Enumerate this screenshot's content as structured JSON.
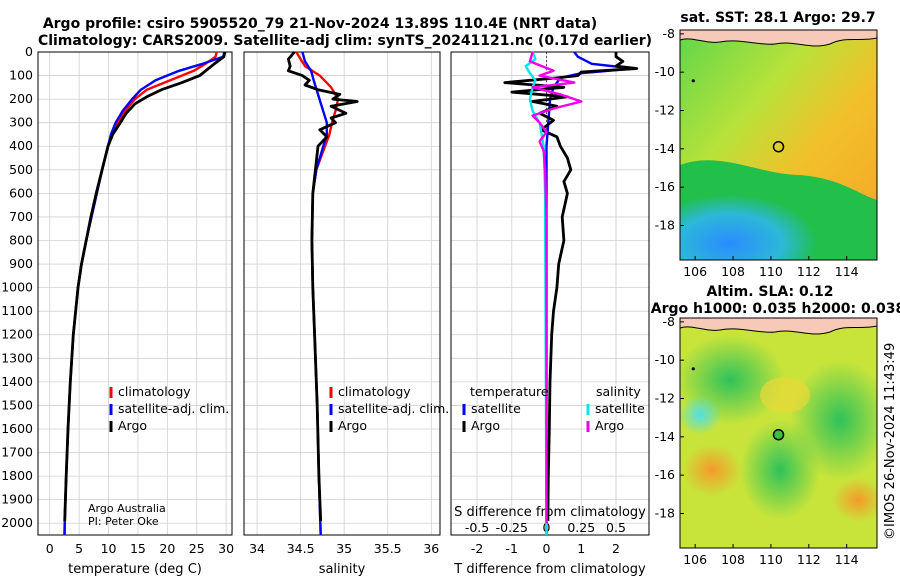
{
  "header": {
    "line1": "Argo profile: csiro 5905520_79 21-Nov-2024 13.89S 110.4E (NRT data)",
    "line2": "Climatology: CARS2009. Satellite-adj clim: synTS_20241121.nc (0.17d earlier)"
  },
  "credits": {
    "org": "Argo Australia",
    "pi": "PI: Peter Oke"
  },
  "timestamp": "©IMOS 26-Nov-2024 11:43:49",
  "colors": {
    "climatology": "#ff0000",
    "satellite": "#0000ff",
    "argo": "#000000",
    "sat_salinity": "#00e5ee",
    "argo_salinity": "#ee00ee"
  },
  "chart_data": [
    {
      "type": "line",
      "name": "temperature_profile",
      "xlabel": "temperature (deg C)",
      "xlim": [
        -2,
        31
      ],
      "xticks": [
        "0",
        "5",
        "10",
        "15",
        "20",
        "25",
        "30"
      ],
      "ylim": [
        0,
        2050
      ],
      "yticks": [
        "0",
        "100",
        "200",
        "300",
        "400",
        "500",
        "600",
        "700",
        "800",
        "900",
        "1000",
        "1100",
        "1200",
        "1300",
        "1400",
        "1500",
        "1600",
        "1700",
        "1800",
        "1900",
        "2000"
      ],
      "legend": [
        "climatology",
        "satellite-adj. clim.",
        "Argo"
      ],
      "series": [
        {
          "name": "climatology",
          "points": [
            [
              0,
              28.4
            ],
            [
              20,
              28.2
            ],
            [
              50,
              26.5
            ],
            [
              80,
              24.5
            ],
            [
              120,
              20.5
            ],
            [
              160,
              16.5
            ],
            [
              200,
              14.5
            ],
            [
              250,
              12.8
            ],
            [
              300,
              11.5
            ],
            [
              350,
              10.5
            ],
            [
              400,
              9.9
            ],
            [
              500,
              8.9
            ],
            [
              600,
              8.0
            ],
            [
              700,
              7.1
            ],
            [
              800,
              6.2
            ],
            [
              900,
              5.4
            ],
            [
              1000,
              4.8
            ],
            [
              1200,
              4.0
            ],
            [
              1400,
              3.5
            ],
            [
              1600,
              3.1
            ],
            [
              1800,
              2.8
            ],
            [
              2000,
              2.55
            ],
            [
              2050,
              2.5
            ]
          ]
        },
        {
          "name": "satellite",
          "points": [
            [
              0,
              29.7
            ],
            [
              20,
              29.5
            ],
            [
              50,
              26.0
            ],
            [
              80,
              22.0
            ],
            [
              120,
              18.0
            ],
            [
              160,
              15.5
            ],
            [
              200,
              14.0
            ],
            [
              250,
              12.4
            ],
            [
              300,
              11.2
            ],
            [
              350,
              10.4
            ],
            [
              400,
              9.9
            ],
            [
              500,
              8.9
            ],
            [
              600,
              8.0
            ],
            [
              700,
              7.1
            ],
            [
              800,
              6.2
            ],
            [
              900,
              5.4
            ],
            [
              1000,
              4.8
            ],
            [
              1200,
              4.0
            ],
            [
              1400,
              3.5
            ],
            [
              1600,
              3.1
            ],
            [
              1800,
              2.8
            ],
            [
              2000,
              2.55
            ],
            [
              2050,
              2.5
            ]
          ]
        },
        {
          "name": "Argo",
          "points": [
            [
              0,
              29.8
            ],
            [
              20,
              29.6
            ],
            [
              50,
              28.0
            ],
            [
              70,
              27.0
            ],
            [
              100,
              25.5
            ],
            [
              130,
              22.5
            ],
            [
              160,
              19.0
            ],
            [
              190,
              16.5
            ],
            [
              220,
              14.5
            ],
            [
              260,
              13.0
            ],
            [
              300,
              12.0
            ],
            [
              350,
              10.7
            ],
            [
              400,
              9.9
            ],
            [
              500,
              8.9
            ],
            [
              600,
              7.9
            ],
            [
              700,
              7.0
            ],
            [
              800,
              6.2
            ],
            [
              900,
              5.4
            ],
            [
              1000,
              4.8
            ],
            [
              1200,
              4.0
            ],
            [
              1400,
              3.5
            ],
            [
              1600,
              3.1
            ],
            [
              1800,
              2.8
            ],
            [
              1990,
              2.55
            ]
          ]
        }
      ]
    },
    {
      "type": "line",
      "name": "salinity_profile",
      "xlabel": "salinity",
      "xlim": [
        33.85,
        36.1
      ],
      "xticks": [
        "34",
        "34.5",
        "35",
        "35.5",
        "36"
      ],
      "ylim": [
        0,
        2050
      ],
      "legend": [
        "climatology",
        "satellite-adj. clim.",
        "Argo"
      ],
      "series": [
        {
          "name": "climatology",
          "points": [
            [
              0,
              34.45
            ],
            [
              30,
              34.5
            ],
            [
              60,
              34.55
            ],
            [
              100,
              34.72
            ],
            [
              150,
              34.85
            ],
            [
              200,
              34.93
            ],
            [
              250,
              34.9
            ],
            [
              300,
              34.86
            ],
            [
              350,
              34.83
            ],
            [
              400,
              34.78
            ],
            [
              500,
              34.68
            ],
            [
              600,
              34.64
            ],
            [
              800,
              34.63
            ],
            [
              1000,
              34.64
            ],
            [
              1200,
              34.66
            ],
            [
              1500,
              34.69
            ],
            [
              1800,
              34.71
            ],
            [
              2050,
              34.73
            ]
          ]
        },
        {
          "name": "satellite",
          "points": [
            [
              0,
              34.52
            ],
            [
              40,
              34.55
            ],
            [
              80,
              34.62
            ],
            [
              120,
              34.65
            ],
            [
              180,
              34.7
            ],
            [
              240,
              34.75
            ],
            [
              300,
              34.8
            ],
            [
              350,
              34.8
            ],
            [
              400,
              34.76
            ],
            [
              500,
              34.68
            ],
            [
              600,
              34.64
            ],
            [
              800,
              34.63
            ],
            [
              1000,
              34.64
            ],
            [
              1200,
              34.66
            ],
            [
              1500,
              34.69
            ],
            [
              1800,
              34.71
            ],
            [
              2050,
              34.73
            ]
          ]
        },
        {
          "name": "Argo",
          "points": [
            [
              0,
              34.43
            ],
            [
              30,
              34.36
            ],
            [
              60,
              34.38
            ],
            [
              80,
              34.36
            ],
            [
              100,
              34.52
            ],
            [
              120,
              34.6
            ],
            [
              140,
              34.55
            ],
            [
              160,
              34.7
            ],
            [
              180,
              34.95
            ],
            [
              200,
              34.87
            ],
            [
              210,
              35.15
            ],
            [
              230,
              34.85
            ],
            [
              260,
              35.02
            ],
            [
              280,
              34.85
            ],
            [
              300,
              34.9
            ],
            [
              330,
              34.72
            ],
            [
              360,
              34.8
            ],
            [
              400,
              34.7
            ],
            [
              500,
              34.67
            ],
            [
              600,
              34.64
            ],
            [
              800,
              34.63
            ],
            [
              1000,
              34.64
            ],
            [
              1200,
              34.66
            ],
            [
              1500,
              34.69
            ],
            [
              1800,
              34.71
            ],
            [
              1990,
              34.73
            ]
          ]
        }
      ]
    },
    {
      "type": "line",
      "name": "difference_profile",
      "xlabel": "T difference from climatology",
      "xlabel_top": "S difference from climatology",
      "xlim": [
        -2.75,
        2.95
      ],
      "xticks": [
        "-2",
        "-1",
        "0",
        "1",
        "2"
      ],
      "xticks_top": [
        "-0.5",
        "-0.25",
        "0",
        "0.25",
        "0.5"
      ],
      "ylim": [
        0,
        2050
      ],
      "legend_temperature": {
        "title": "temperature",
        "items": [
          "satellite",
          "Argo"
        ]
      },
      "legend_salinity": {
        "title": "salinity",
        "items": [
          "satellite",
          "Argo"
        ]
      },
      "series": [
        {
          "name": "T satellite",
          "points": [
            [
              0,
              0.8
            ],
            [
              20,
              0.9
            ],
            [
              50,
              1.3
            ],
            [
              70,
              2.5
            ],
            [
              90,
              1.0
            ],
            [
              110,
              0.4
            ],
            [
              150,
              0.2
            ],
            [
              200,
              0.1
            ],
            [
              300,
              0.05
            ],
            [
              400,
              0
            ],
            [
              800,
              0
            ],
            [
              2050,
              0
            ]
          ]
        },
        {
          "name": "T Argo",
          "points": [
            [
              0,
              2.0
            ],
            [
              20,
              2.0
            ],
            [
              40,
              2.2
            ],
            [
              60,
              2.0
            ],
            [
              70,
              2.6
            ],
            [
              85,
              1.0
            ],
            [
              100,
              0.9
            ],
            [
              110,
              0.3
            ],
            [
              130,
              -1.2
            ],
            [
              150,
              0.5
            ],
            [
              170,
              -1.0
            ],
            [
              190,
              0.6
            ],
            [
              210,
              -0.4
            ],
            [
              230,
              0.3
            ],
            [
              260,
              -0.2
            ],
            [
              290,
              0.2
            ],
            [
              330,
              -0.15
            ],
            [
              360,
              0.3
            ],
            [
              400,
              0.4
            ],
            [
              450,
              0.6
            ],
            [
              500,
              0.7
            ],
            [
              550,
              0.5
            ],
            [
              600,
              0.6
            ],
            [
              700,
              0.45
            ],
            [
              800,
              0.5
            ],
            [
              900,
              0.35
            ],
            [
              1000,
              0.3
            ],
            [
              1100,
              0.2
            ],
            [
              1200,
              0.15
            ],
            [
              1400,
              0.1
            ],
            [
              1600,
              0.08
            ],
            [
              1800,
              0.05
            ],
            [
              1990,
              0.04
            ]
          ]
        },
        {
          "name": "S satellite",
          "points": [
            [
              0,
              -0.1
            ],
            [
              30,
              -0.08
            ],
            [
              60,
              -0.15
            ],
            [
              90,
              -0.12
            ],
            [
              120,
              -0.08
            ],
            [
              150,
              -0.1
            ],
            [
              200,
              -0.12
            ],
            [
              250,
              -0.1
            ],
            [
              300,
              -0.05
            ],
            [
              400,
              -0.02
            ],
            [
              600,
              -0.01
            ],
            [
              2050,
              0
            ]
          ]
        },
        {
          "name": "S Argo",
          "points": [
            [
              0,
              -0.1
            ],
            [
              40,
              -0.12
            ],
            [
              80,
              0.05
            ],
            [
              100,
              -0.05
            ],
            [
              130,
              0.2
            ],
            [
              150,
              -0.1
            ],
            [
              180,
              0.1
            ],
            [
              210,
              0.25
            ],
            [
              240,
              0.05
            ],
            [
              270,
              -0.1
            ],
            [
              300,
              -0.05
            ],
            [
              340,
              0.0
            ],
            [
              380,
              -0.05
            ],
            [
              420,
              -0.02
            ],
            [
              500,
              -0.01
            ],
            [
              700,
              0.0
            ],
            [
              1000,
              0.0
            ],
            [
              2000,
              0.0
            ]
          ]
        }
      ]
    },
    {
      "type": "heatmap",
      "name": "sst_map",
      "title": "sat. SST: 28.1 Argo: 29.7",
      "xlim": [
        105.2,
        115.6
      ],
      "ylim": [
        -19.8,
        -7.8
      ],
      "xticks": [
        "106",
        "108",
        "110",
        "112",
        "114"
      ],
      "yticks": [
        "-8",
        "-10",
        "-12",
        "-14",
        "-16",
        "-18"
      ],
      "marker": {
        "lon": 110.4,
        "lat": -13.89
      }
    },
    {
      "type": "heatmap",
      "name": "sla_map",
      "title": "Altim. SLA: 0.12",
      "subtitle": "Argo h1000: 0.035 h2000: 0.038",
      "xlim": [
        105.2,
        115.6
      ],
      "ylim": [
        -19.8,
        -7.8
      ],
      "xticks": [
        "106",
        "108",
        "110",
        "112",
        "114"
      ],
      "yticks": [
        "-8",
        "-10",
        "-12",
        "-14",
        "-16",
        "-18"
      ],
      "marker": {
        "lon": 110.4,
        "lat": -13.89
      }
    }
  ]
}
